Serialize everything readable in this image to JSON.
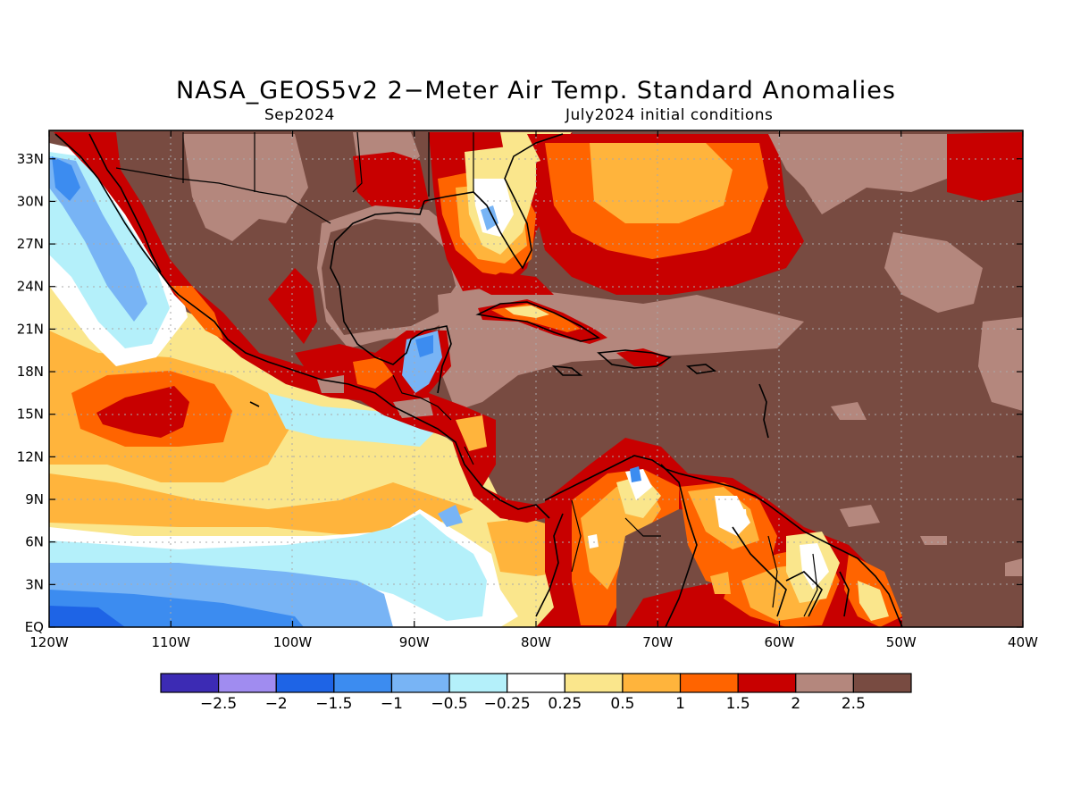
{
  "title": "NASA_GEOS5v2 2−Meter Air Temp. Standard Anomalies",
  "subtitle_left": "Sep2024",
  "subtitle_right": "July2024 initial conditions",
  "map": {
    "lon_range": [
      -120,
      -40
    ],
    "lat_range": [
      0,
      35
    ],
    "x_ticks": [
      "120W",
      "110W",
      "100W",
      "90W",
      "80W",
      "70W",
      "60W",
      "50W",
      "40W"
    ],
    "y_ticks": [
      "EQ",
      "3N",
      "6N",
      "9N",
      "12N",
      "15N",
      "18N",
      "21N",
      "24N",
      "27N",
      "30N",
      "33N"
    ],
    "grid": "dotted"
  },
  "colorbar": {
    "colors": [
      "#3c2bb4",
      "#a08cf0",
      "#1e64e6",
      "#3c8cf0",
      "#78b4f5",
      "#b4f0fa",
      "#ffffff",
      "#fae68c",
      "#ffb43c",
      "#ff6400",
      "#c80000",
      "#b4877d",
      "#784b41"
    ],
    "labels": [
      "−2.5",
      "−2",
      "−1.5",
      "−1",
      "−0.5",
      "−0.25",
      "0.25",
      "0.5",
      "1",
      "1.5",
      "2",
      "2.5"
    ]
  },
  "colors": {
    "brown_dark": "#784b41",
    "brown_light": "#b4877d",
    "red": "#c80000",
    "orange": "#ff6400",
    "light_orange": "#ffb43c",
    "yellow": "#fae68c",
    "white": "#ffffff",
    "cyan": "#b4f0fa",
    "light_blue": "#78b4f5",
    "blue": "#3c8cf0",
    "mid_blue": "#1e64e6"
  }
}
